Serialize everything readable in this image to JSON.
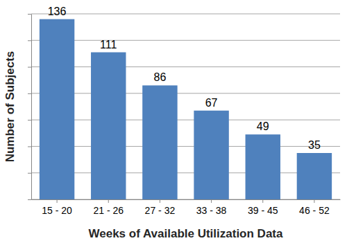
{
  "chart_data": {
    "type": "bar",
    "x_label": "Weeks of Available Utilization Data",
    "y_label": "Number of Subjects",
    "categories": [
      "15 - 20",
      "21 - 26",
      "27 - 32",
      "33 - 38",
      "39 - 45",
      "46 - 52"
    ],
    "values": [
      136,
      111,
      86,
      67,
      49,
      35
    ],
    "color": "#4f81bd",
    "ylim": [
      0,
      140
    ],
    "yticks": [
      0,
      20,
      40,
      60,
      80,
      100,
      120,
      140
    ],
    "grid": true,
    "data_labels": true,
    "tick_labels": "x"
  }
}
